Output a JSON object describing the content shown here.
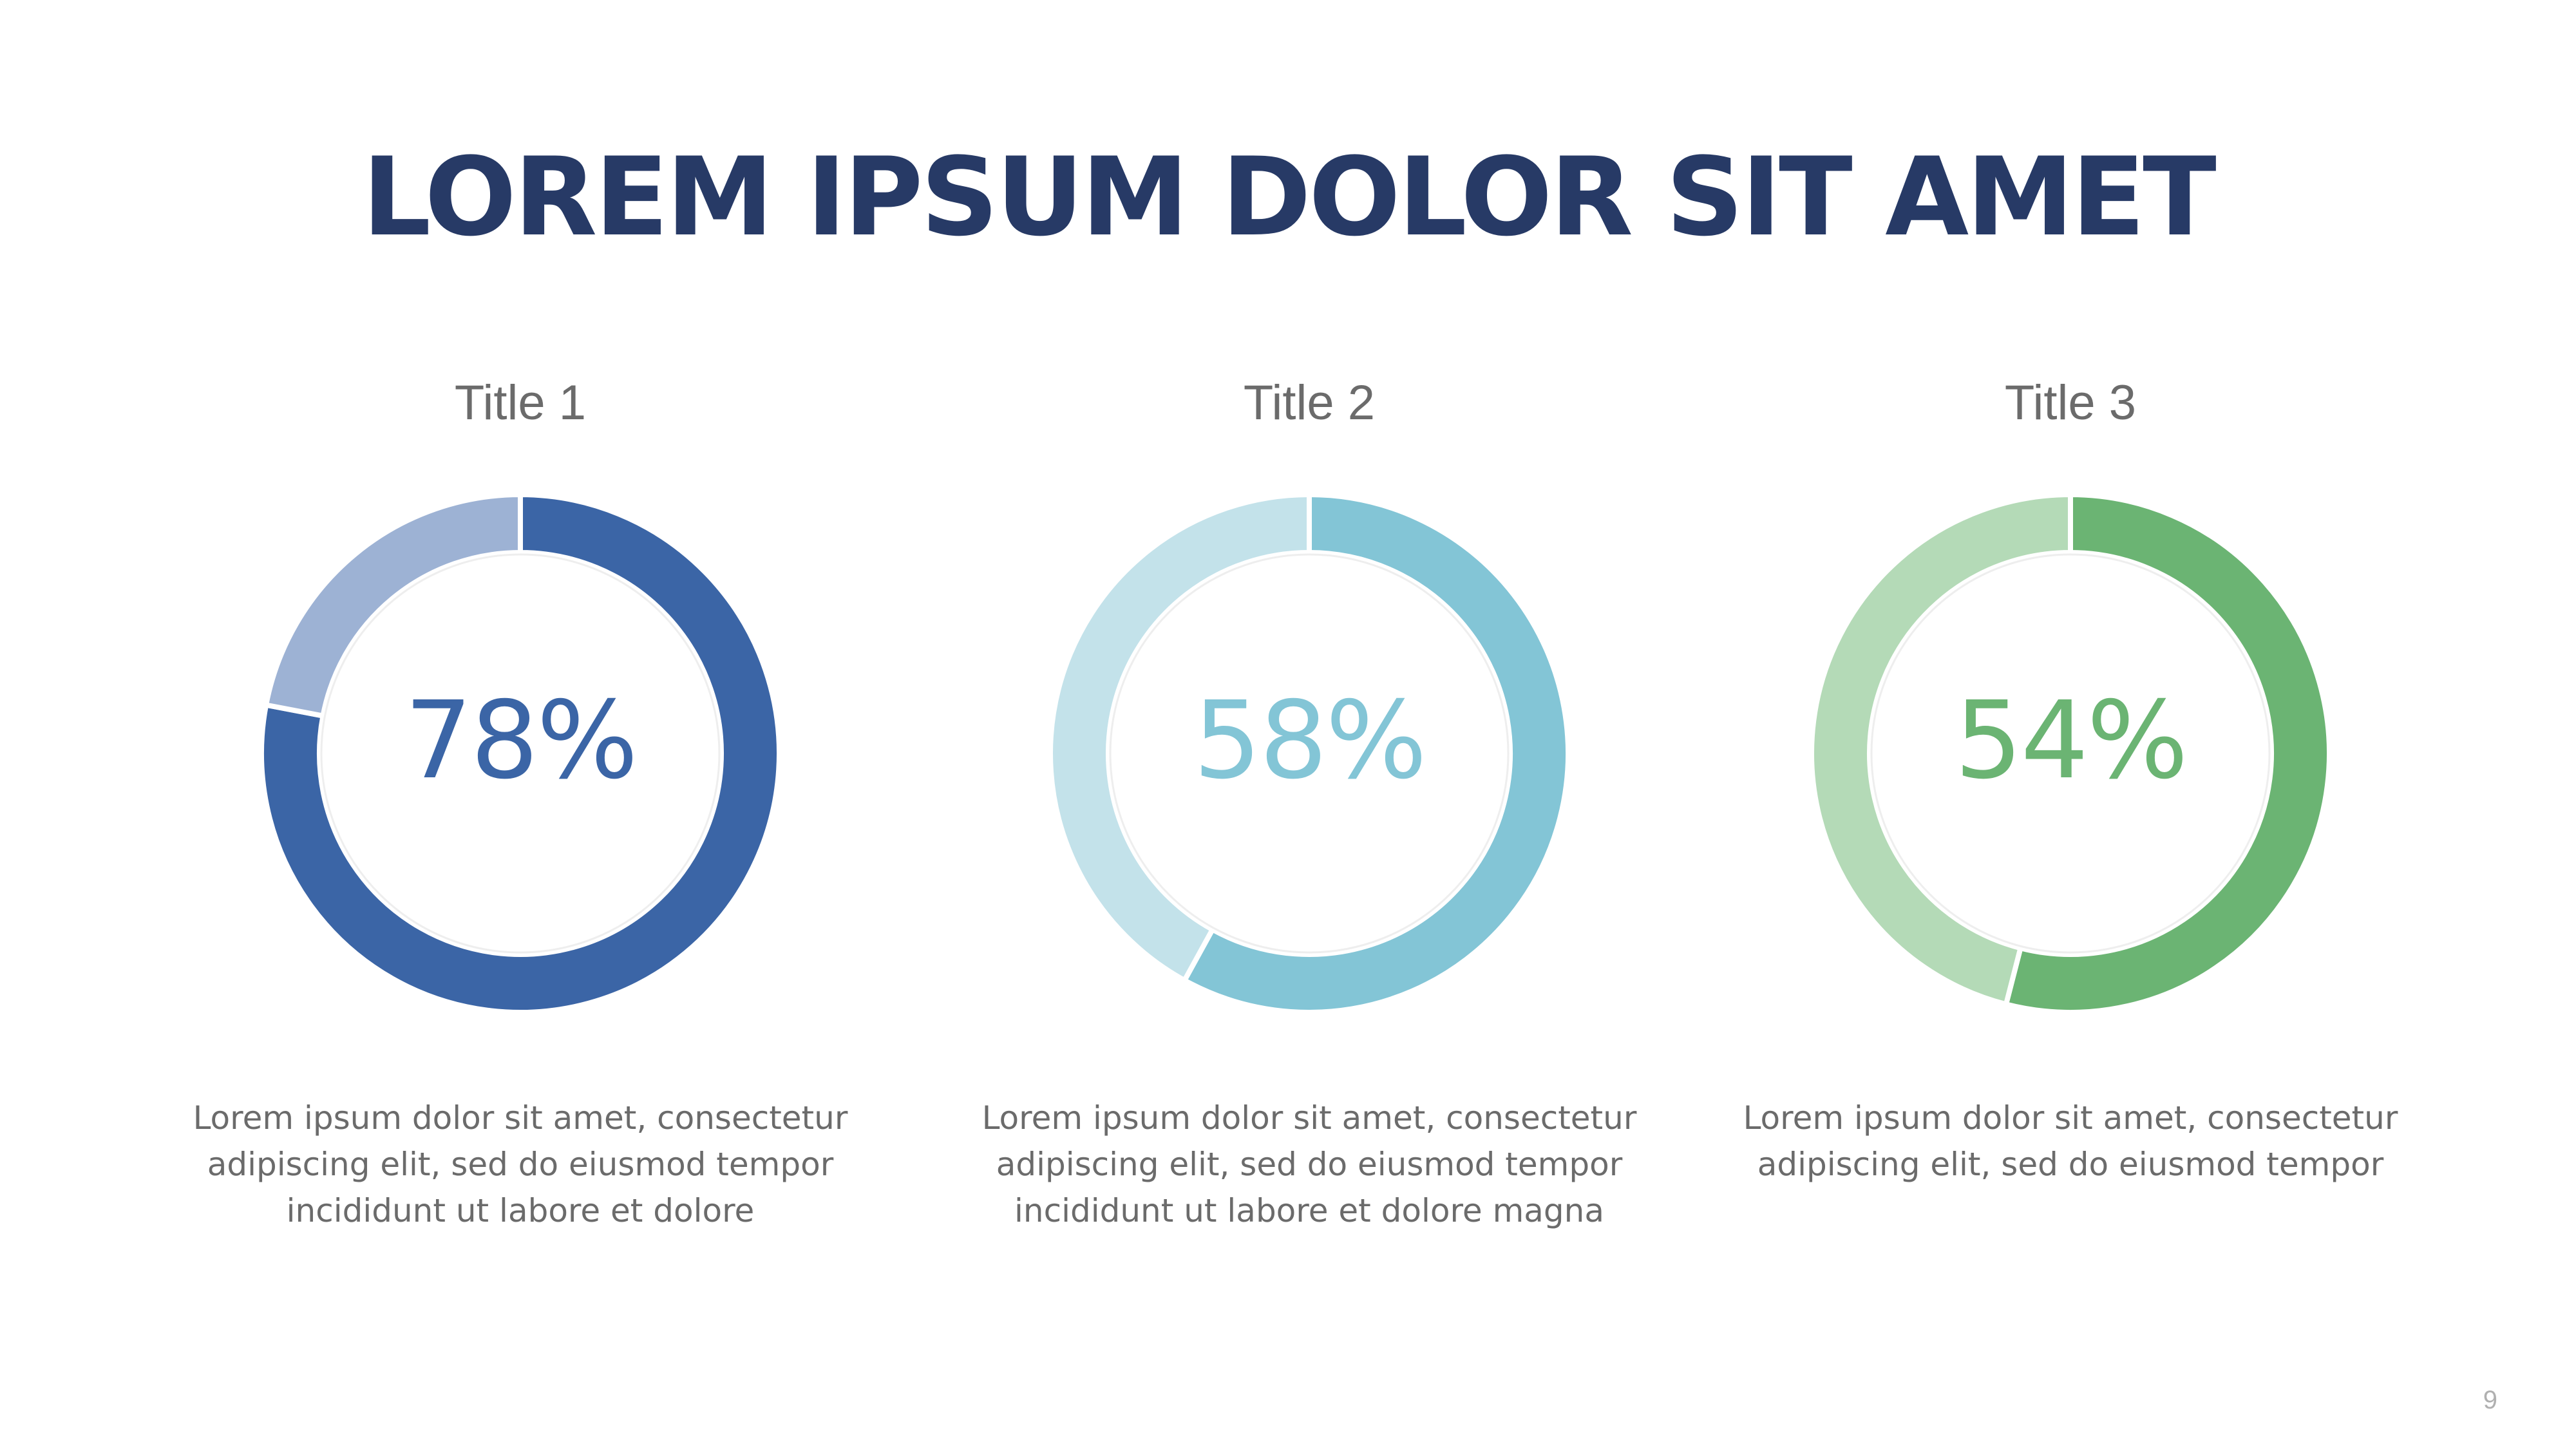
{
  "slide": {
    "title": "LOREM IPSUM DOLOR SIT AMET",
    "page_number": "9"
  },
  "panels": [
    {
      "title": "Title 1",
      "value_label": "78%",
      "description": [
        "Lorem ipsum dolor sit amet, consectetur",
        "adipiscing elit, sed do eiusmod tempor",
        "incididunt ut labore et dolore"
      ],
      "color_dark": "#3b65a6",
      "color_light": "#9db2d4"
    },
    {
      "title": "Title 2",
      "value_label": "58%",
      "description": [
        "Lorem ipsum dolor sit amet, consectetur",
        "adipiscing elit, sed do eiusmod tempor",
        "incididunt ut labore et dolore magna"
      ],
      "color_dark": "#83c5d6",
      "color_light": "#c3e2ea"
    },
    {
      "title": "Title 3",
      "value_label": "54%",
      "description": [
        "Lorem ipsum dolor sit amet, consectetur",
        "adipiscing elit, sed do eiusmod tempor"
      ],
      "color_dark": "#6bb473",
      "color_light": "#b4dab7"
    }
  ],
  "chart_data": [
    {
      "type": "pie",
      "title": "Title 1",
      "categories": [
        "",
        ""
      ],
      "values": [
        78,
        22
      ]
    },
    {
      "type": "pie",
      "title": "Title 2",
      "categories": [
        "",
        ""
      ],
      "values": [
        58,
        42
      ]
    },
    {
      "type": "pie",
      "title": "Title 3",
      "categories": [
        "",
        ""
      ],
      "values": [
        54,
        46
      ]
    }
  ]
}
